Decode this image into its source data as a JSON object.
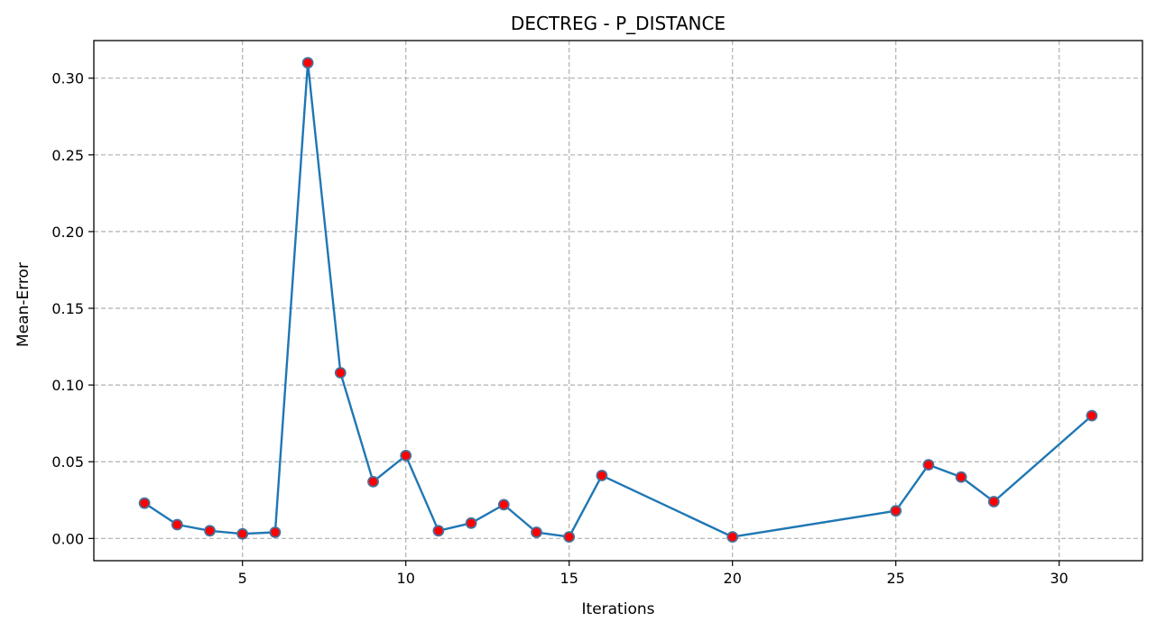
{
  "chart_data": {
    "type": "line",
    "title": "DECTREG - P_DISTANCE",
    "xlabel": "Iterations",
    "ylabel": "Mean-Error",
    "xlim": [
      0.45,
      32.55
    ],
    "ylim": [
      -0.0145,
      0.3245
    ],
    "xticks": [
      5,
      10,
      15,
      20,
      25,
      30
    ],
    "yticks": [
      0.0,
      0.05,
      0.1,
      0.15,
      0.2,
      0.25,
      0.3
    ],
    "ytick_labels": [
      "0.00",
      "0.05",
      "0.10",
      "0.15",
      "0.20",
      "0.25",
      "0.30"
    ],
    "grid": true,
    "line_color": "#1f77b4",
    "marker_fill": "#ff0000",
    "marker_edge": "#4a6f9a",
    "series": [
      {
        "x": [
          2,
          3,
          4,
          5,
          6,
          7,
          8,
          9,
          10,
          11,
          12,
          13,
          14,
          15,
          16,
          20,
          25,
          26,
          27,
          28,
          31
        ],
        "y": [
          0.023,
          0.009,
          0.005,
          0.003,
          0.004,
          0.31,
          0.108,
          0.037,
          0.054,
          0.005,
          0.01,
          0.022,
          0.004,
          0.001,
          0.041,
          0.001,
          0.018,
          0.048,
          0.04,
          0.024,
          0.08
        ]
      }
    ]
  }
}
